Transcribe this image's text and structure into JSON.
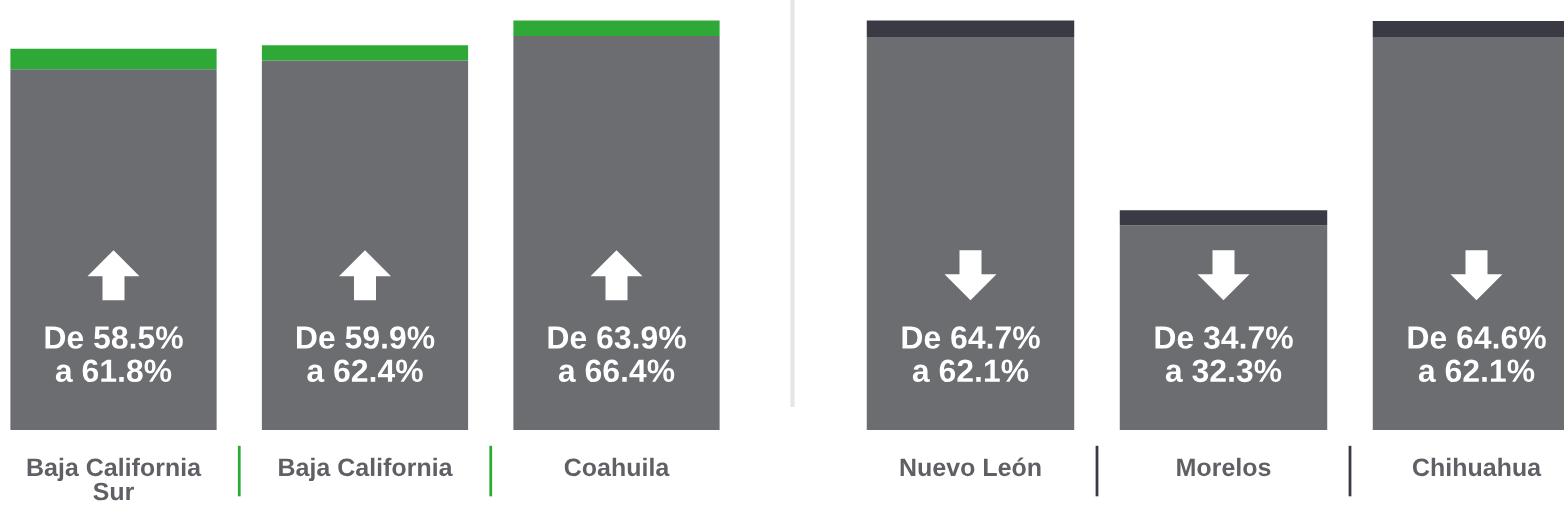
{
  "chart_data": [
    {
      "type": "bar",
      "stacked": true,
      "categories": [
        "Baja California Sur",
        "Baja California",
        "Coahuila"
      ],
      "series": [
        {
          "color": "#6b6d71",
          "values": [
            58.5,
            59.9,
            63.9
          ],
          "value_labels": [
            "De 58.5% a 61.8%",
            "De 59.9% a 62.4%",
            "De 63.9% a 66.4%"
          ]
        },
        {
          "color": "#2ea836",
          "values": [
            3.3,
            2.5,
            2.5
          ]
        }
      ],
      "tick_labels": "x"
    },
    {
      "type": "bar",
      "stacked": true,
      "categories": [
        "Nuevo León",
        "Morelos",
        "Chihuahua"
      ],
      "series": [
        {
          "color": "#6b6d71",
          "values": [
            62.1,
            32.3,
            62.1
          ],
          "value_labels": [
            "De 64.7% a 62.1%",
            "De 34.7% a 32.3%",
            "De 64.6% a 62.1%"
          ]
        },
        {
          "color": "#3a3a44",
          "values": [
            2.6,
            2.4,
            2.5
          ]
        }
      ],
      "tick_labels": "x"
    }
  ]
}
